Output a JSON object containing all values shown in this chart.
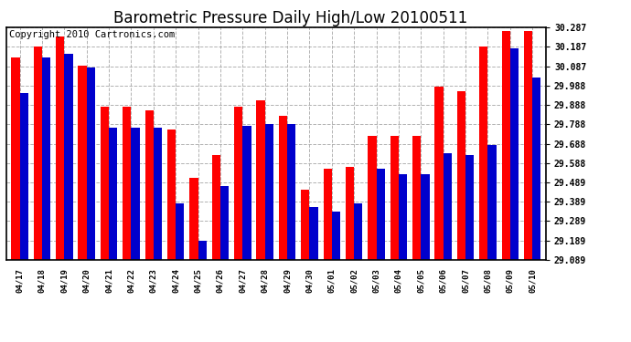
{
  "title": "Barometric Pressure Daily High/Low 20100511",
  "copyright": "Copyright 2010 Cartronics.com",
  "categories": [
    "04/17",
    "04/18",
    "04/19",
    "04/20",
    "04/21",
    "04/22",
    "04/23",
    "04/24",
    "04/25",
    "04/26",
    "04/27",
    "04/28",
    "04/29",
    "04/30",
    "05/01",
    "05/02",
    "05/03",
    "05/04",
    "05/05",
    "05/06",
    "05/07",
    "05/08",
    "05/09",
    "05/10"
  ],
  "highs": [
    30.13,
    30.19,
    30.24,
    30.09,
    29.88,
    29.88,
    29.86,
    29.76,
    29.51,
    29.63,
    29.88,
    29.91,
    29.83,
    29.45,
    29.56,
    29.57,
    29.73,
    29.73,
    29.73,
    29.98,
    29.96,
    30.19,
    30.27,
    30.27
  ],
  "lows": [
    29.95,
    30.13,
    30.15,
    30.08,
    29.77,
    29.77,
    29.77,
    29.38,
    29.19,
    29.47,
    29.78,
    29.79,
    29.79,
    29.36,
    29.34,
    29.38,
    29.56,
    29.53,
    29.53,
    29.64,
    29.63,
    29.68,
    30.18,
    30.03
  ],
  "ymin": 29.089,
  "ymax": 30.287,
  "yticks": [
    29.089,
    29.189,
    29.289,
    29.389,
    29.489,
    29.588,
    29.688,
    29.788,
    29.888,
    29.988,
    30.087,
    30.187,
    30.287
  ],
  "ytick_labels": [
    "29.089",
    "29.189",
    "29.289",
    "29.389",
    "29.489",
    "29.588",
    "29.688",
    "29.788",
    "29.888",
    "29.988",
    "30.087",
    "30.187",
    "30.287"
  ],
  "bar_width": 0.38,
  "high_color": "#ff0000",
  "low_color": "#0000cc",
  "bg_color": "#ffffff",
  "plot_bg_color": "#ffffff",
  "grid_color": "#aaaaaa",
  "title_fontsize": 12,
  "copyright_fontsize": 7.5
}
